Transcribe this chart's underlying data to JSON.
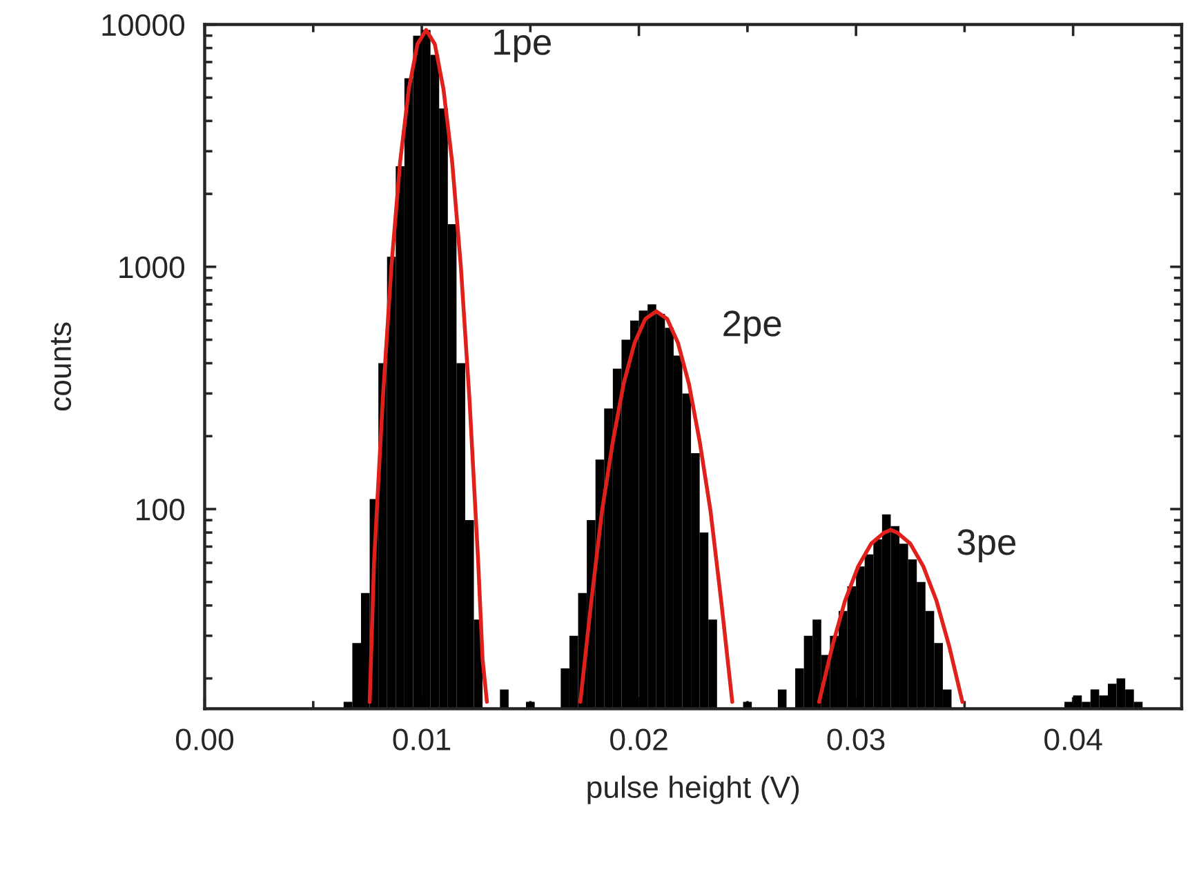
{
  "chart_data": {
    "type": "histogram",
    "xlabel": "pulse height (V)",
    "ylabel": "counts",
    "log": "y",
    "grid": false,
    "bins": [
      0.0064,
      0.0068,
      0.0072,
      0.0076,
      0.008,
      0.0084,
      0.0088,
      0.0092,
      0.0096,
      0.01,
      0.0104,
      0.0108,
      0.0112,
      0.0116,
      0.012,
      0.0124,
      0.0128,
      0.0132,
      0.0136,
      0.014,
      0.0144,
      0.0148,
      0.0152,
      0.0156,
      0.016,
      0.0164,
      0.0168,
      0.0172,
      0.0176,
      0.018,
      0.0184,
      0.0188,
      0.0192,
      0.0196,
      0.02,
      0.0204,
      0.0208,
      0.0212,
      0.0216,
      0.022,
      0.0224,
      0.0228,
      0.0232,
      0.0236,
      0.024,
      0.0244,
      0.0248,
      0.0252,
      0.0256,
      0.026,
      0.0264,
      0.0268,
      0.0272,
      0.0276,
      0.028,
      0.0284,
      0.0288,
      0.0292,
      0.0296,
      0.03,
      0.0304,
      0.0308,
      0.0312,
      0.0316,
      0.032,
      0.0324,
      0.0328,
      0.0332,
      0.0336,
      0.034,
      0.0344,
      0.0348,
      0.0352,
      0.0356,
      0.036,
      0.0364,
      0.0368,
      0.0372,
      0.0376,
      0.038,
      0.0384,
      0.0388,
      0.0392,
      0.0396,
      0.04,
      0.0404,
      0.0408,
      0.0412,
      0.0416,
      0.042,
      0.0424,
      0.0428,
      0.0432
    ],
    "values": [
      16,
      28,
      45,
      110,
      400,
      1100,
      2600,
      6000,
      9000,
      9500,
      7500,
      4500,
      1500,
      400,
      90,
      35,
      null,
      null,
      18,
      null,
      null,
      16,
      null,
      null,
      null,
      22,
      30,
      45,
      90,
      160,
      260,
      380,
      500,
      600,
      660,
      700,
      640,
      560,
      430,
      300,
      170,
      80,
      35,
      null,
      null,
      null,
      16,
      null,
      null,
      null,
      18,
      null,
      22,
      30,
      35,
      25,
      30,
      38,
      48,
      58,
      65,
      75,
      95,
      85,
      72,
      62,
      50,
      38,
      28,
      18,
      null,
      null,
      null,
      null,
      null,
      null,
      null,
      null,
      null,
      null,
      null,
      null,
      null,
      16,
      17,
      16,
      18,
      17,
      19,
      20,
      18,
      16
    ],
    "color": "#000000",
    "series": [
      {
        "type": "line",
        "color": "#e0201b",
        "x": [
          0.0076,
          0.0078,
          0.0082,
          0.0086,
          0.009,
          0.0094,
          0.0098,
          0.0102,
          0.0106,
          0.011,
          0.0114,
          0.0118,
          0.0122,
          0.0126,
          0.0128,
          0.013
        ],
        "values": [
          16,
          60,
          280,
          1000,
          2700,
          5400,
          8300,
          9500,
          8300,
          5400,
          2700,
          1000,
          280,
          60,
          24,
          16
        ]
      },
      {
        "type": "line",
        "color": "#e0201b",
        "x": [
          0.0173,
          0.0178,
          0.0183,
          0.0188,
          0.0193,
          0.0198,
          0.0203,
          0.0208,
          0.0213,
          0.0218,
          0.0223,
          0.0228,
          0.0233,
          0.0238,
          0.0243
        ],
        "values": [
          16,
          41,
          98,
          190,
          330,
          485,
          610,
          655,
          610,
          485,
          330,
          190,
          98,
          41,
          16
        ]
      },
      {
        "type": "line",
        "color": "#e0201b",
        "x": [
          0.0283,
          0.0289,
          0.0295,
          0.0301,
          0.0307,
          0.0313,
          0.0316,
          0.0319,
          0.0325,
          0.0331,
          0.0337,
          0.0343,
          0.0349
        ],
        "values": [
          16,
          27,
          42,
          58,
          72,
          80,
          82,
          80,
          72,
          58,
          42,
          27,
          16
        ]
      }
    ],
    "annotations": [
      {
        "text": "1pe",
        "x": 0.0102,
        "y": 9500
      },
      {
        "text": "2pe",
        "x": 0.0208,
        "y": 655
      },
      {
        "text": "3pe",
        "x": 0.0316,
        "y": 82
      }
    ],
    "xlim": [
      0,
      0.045
    ],
    "xticks": [
      {
        "value": 0,
        "label": "0.00"
      },
      {
        "value": 0.005,
        "label": null
      },
      {
        "value": 0.01,
        "label": "0.01"
      },
      {
        "value": 0.015,
        "label": null
      },
      {
        "value": 0.02,
        "label": "0.02"
      },
      {
        "value": 0.025,
        "label": null
      },
      {
        "value": 0.03,
        "label": "0.03"
      },
      {
        "value": 0.035,
        "label": null
      },
      {
        "value": 0.04,
        "label": "0.04"
      }
    ],
    "ylim": [
      15,
      10000
    ],
    "yticks": [
      {
        "value": 20,
        "label": null
      },
      {
        "value": 30,
        "label": null
      },
      {
        "value": 40,
        "label": null
      },
      {
        "value": 50,
        "label": null
      },
      {
        "value": 60,
        "label": null
      },
      {
        "value": 70,
        "label": null
      },
      {
        "value": 80,
        "label": null
      },
      {
        "value": 90,
        "label": null
      },
      100,
      {
        "value": 200,
        "label": null
      },
      {
        "value": 300,
        "label": null
      },
      {
        "value": 400,
        "label": null
      },
      {
        "value": 500,
        "label": null
      },
      {
        "value": 600,
        "label": null
      },
      {
        "value": 700,
        "label": null
      },
      {
        "value": 800,
        "label": null
      },
      {
        "value": 900,
        "label": null
      },
      1000,
      {
        "value": 2000,
        "label": null
      },
      {
        "value": 3000,
        "label": null
      },
      {
        "value": 4000,
        "label": null
      },
      {
        "value": 5000,
        "label": null
      },
      {
        "value": 6000,
        "label": null
      },
      {
        "value": 7000,
        "label": null
      },
      {
        "value": 8000,
        "label": null
      },
      {
        "value": 9000,
        "label": null
      },
      10000
    ]
  }
}
